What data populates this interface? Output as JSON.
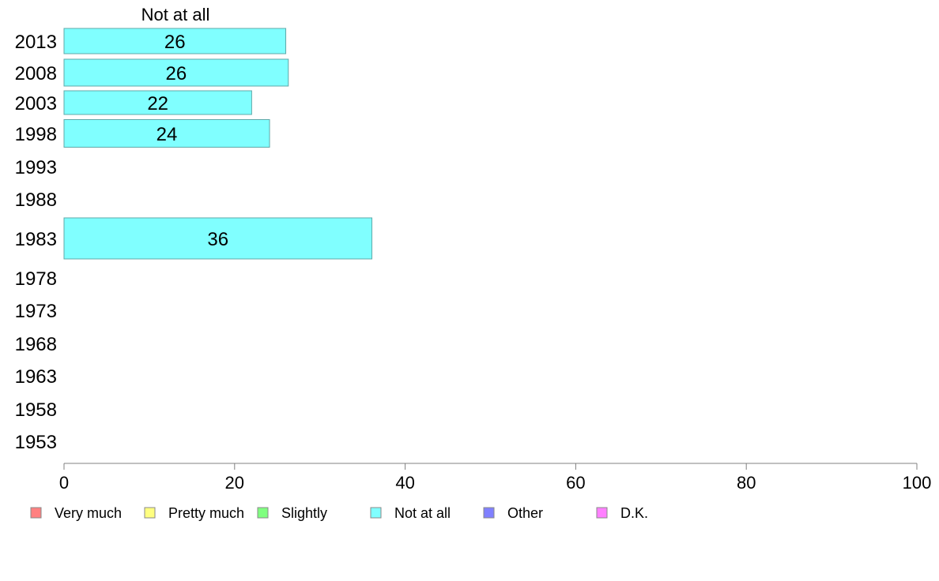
{
  "chart_data": {
    "type": "bar",
    "orientation": "horizontal",
    "title": "Not at all",
    "categories": [
      "2013",
      "2008",
      "2003",
      "1998",
      "1993",
      "1988",
      "1983",
      "1978",
      "1973",
      "1968",
      "1963",
      "1958",
      "1953"
    ],
    "series": [
      {
        "name": "Not at all",
        "color": "#80ffff",
        "values": [
          26,
          26.3,
          22,
          24.1,
          null,
          null,
          36.1,
          null,
          null,
          null,
          null,
          null,
          null
        ]
      }
    ],
    "data_labels": [
      "26",
      "26",
      "22",
      "24",
      "",
      "",
      "36",
      "",
      "",
      "",
      "",
      "",
      ""
    ],
    "xlim": [
      0,
      100
    ],
    "x_ticks": [
      "0",
      "20",
      "40",
      "60",
      "80",
      "100"
    ],
    "grid": false,
    "legend": {
      "placement": "bottom",
      "entries": [
        {
          "label": "Very much",
          "color": "#ff8080"
        },
        {
          "label": "Pretty much",
          "color": "#ffff80"
        },
        {
          "label": "Slightly",
          "color": "#80ff80"
        },
        {
          "label": "Not at all",
          "color": "#80ffff"
        },
        {
          "label": "Other",
          "color": "#8080ff"
        },
        {
          "label": "D.K.",
          "color": "#ff80ff"
        }
      ]
    }
  }
}
